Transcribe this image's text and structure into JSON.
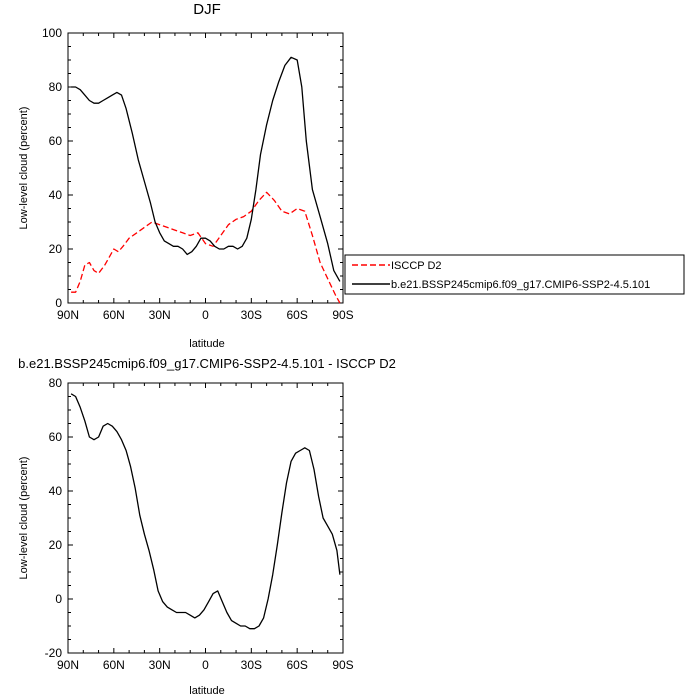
{
  "chart_data": [
    {
      "type": "line",
      "title": "DJF",
      "xlabel": "latitude",
      "ylabel": "Low-level cloud (percent)",
      "xlim": [
        90,
        -90
      ],
      "ylim": [
        0,
        100
      ],
      "xticks": [
        90,
        60,
        30,
        0,
        -30,
        -60,
        -90
      ],
      "xtick_labels": [
        "90N",
        "60N",
        "30N",
        "0",
        "30S",
        "60S",
        "90S"
      ],
      "yticks": [
        0,
        20,
        40,
        60,
        80,
        100
      ],
      "ytick_labels": [
        "0",
        "20",
        "40",
        "60",
        "80",
        "100"
      ],
      "grid": false,
      "legend_position": "right",
      "series": [
        {
          "name": "ISCCP D2",
          "color": "#ff0000",
          "dash": "dashed",
          "x": [
            88,
            85,
            82,
            79,
            76,
            73,
            70,
            66,
            63,
            60,
            57,
            54,
            50,
            45,
            40,
            35,
            30,
            25,
            20,
            15,
            10,
            5,
            0,
            -5,
            -10,
            -15,
            -20,
            -25,
            -30,
            -35,
            -40,
            -45,
            -50,
            -55,
            -60,
            -65,
            -70,
            -75,
            -80,
            -85,
            -88
          ],
          "y": [
            4,
            4,
            8,
            14,
            15,
            12,
            11,
            14,
            17,
            20,
            19,
            21,
            24,
            26,
            28,
            30,
            29,
            28,
            27,
            26,
            25,
            26,
            22,
            21,
            25,
            29,
            31,
            32,
            34,
            38,
            41,
            38,
            34,
            33,
            35,
            34,
            25,
            15,
            9,
            3,
            0
          ]
        },
        {
          "name": "b.e21.BSSP245cmip6.f09_g17.CMIP6-SSP2-4.5.101",
          "color": "#000000",
          "dash": "solid",
          "x": [
            88,
            85,
            82,
            79,
            76,
            73,
            70,
            67,
            64,
            61,
            58,
            55,
            52,
            48,
            44,
            40,
            36,
            33,
            30,
            27,
            24,
            21,
            18,
            15,
            12,
            9,
            6,
            3,
            0,
            -3,
            -6,
            -9,
            -12,
            -15,
            -18,
            -21,
            -24,
            -27,
            -30,
            -33,
            -36,
            -40,
            -44,
            -48,
            -52,
            -56,
            -60,
            -63,
            -66,
            -70,
            -75,
            -80,
            -84,
            -88
          ],
          "y": [
            80,
            80,
            79,
            77,
            75,
            74,
            74,
            75,
            76,
            77,
            78,
            77,
            72,
            63,
            53,
            45,
            37,
            30,
            26,
            23,
            22,
            21,
            21,
            20,
            18,
            19,
            21,
            24,
            24,
            23,
            21,
            20,
            20,
            21,
            21,
            20,
            21,
            24,
            31,
            42,
            55,
            66,
            75,
            82,
            88,
            91,
            90,
            80,
            60,
            42,
            32,
            22,
            12,
            8
          ]
        }
      ]
    },
    {
      "type": "line",
      "title": "b.e21.BSSP245cmip6.f09_g17.CMIP6-SSP2-4.5.101 - ISCCP D2",
      "xlabel": "latitude",
      "ylabel": "Low-level cloud (percent)",
      "xlim": [
        90,
        -90
      ],
      "ylim": [
        -20,
        80
      ],
      "xticks": [
        90,
        60,
        30,
        0,
        -30,
        -60,
        -90
      ],
      "xtick_labels": [
        "90N",
        "60N",
        "30N",
        "0",
        "30S",
        "60S",
        "90S"
      ],
      "yticks": [
        -20,
        0,
        20,
        40,
        60,
        80
      ],
      "ytick_labels": [
        "-20",
        "0",
        "20",
        "40",
        "60",
        "80"
      ],
      "grid": false,
      "series": [
        {
          "color": "#000000",
          "dash": "solid",
          "x": [
            88,
            85,
            82,
            79,
            76,
            73,
            70,
            67,
            64,
            61,
            58,
            55,
            52,
            49,
            46,
            43,
            40,
            37,
            34,
            31,
            28,
            25,
            22,
            19,
            16,
            13,
            10,
            7,
            4,
            1,
            -2,
            -5,
            -8,
            -11,
            -14,
            -17,
            -20,
            -23,
            -26,
            -29,
            -32,
            -35,
            -38,
            -41,
            -44,
            -47,
            -50,
            -53,
            -56,
            -59,
            -62,
            -65,
            -68,
            -71,
            -74,
            -77,
            -80,
            -83,
            -86,
            -88
          ],
          "y": [
            76,
            75,
            71,
            66,
            60,
            59,
            60,
            64,
            65,
            64,
            62,
            59,
            55,
            49,
            41,
            31,
            24,
            18,
            11,
            3,
            -1,
            -3,
            -4,
            -5,
            -5,
            -5,
            -6,
            -7,
            -6,
            -4,
            -1,
            2,
            3,
            -1,
            -5,
            -8,
            -9,
            -10,
            -10,
            -11,
            -11,
            -10,
            -7,
            0,
            9,
            20,
            32,
            43,
            51,
            54,
            55,
            56,
            55,
            48,
            38,
            30,
            27,
            24,
            18,
            9
          ]
        }
      ]
    }
  ]
}
